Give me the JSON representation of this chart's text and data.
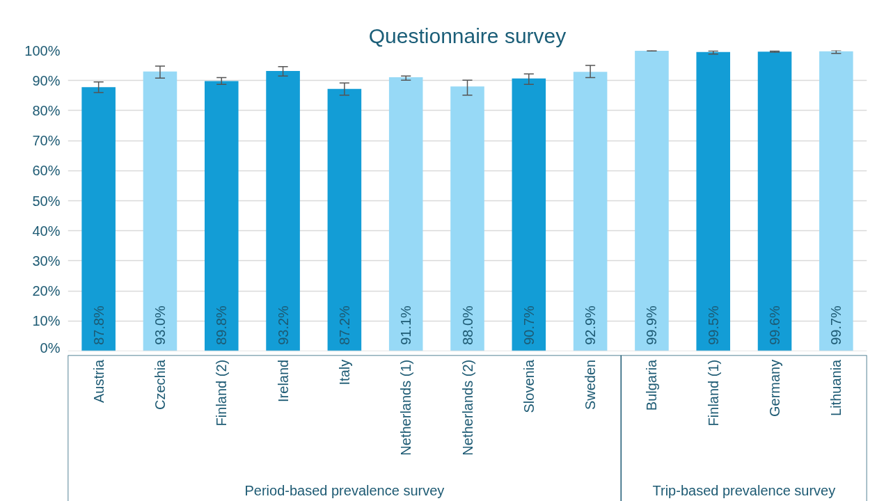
{
  "chart_data": {
    "type": "bar",
    "title": "Questionnaire survey",
    "categories": [
      "Austria",
      "Czechia",
      "Finland (2)",
      "Ireland",
      "Italy",
      "Netherlands (1)",
      "Netherlands (2)",
      "Slovenia",
      "Sweden",
      "Bulgaria",
      "Finland (1)",
      "Germany",
      "Lithuania"
    ],
    "values": [
      87.8,
      93.0,
      89.8,
      93.2,
      87.2,
      91.1,
      88.0,
      90.7,
      92.9,
      99.9,
      99.5,
      99.6,
      99.7
    ],
    "colors": [
      "#139dd6",
      "#97d9f6",
      "#139dd6",
      "#139dd6",
      "#139dd6",
      "#97d9f6",
      "#97d9f6",
      "#139dd6",
      "#97d9f6",
      "#97d9f6",
      "#139dd6",
      "#139dd6",
      "#97d9f6"
    ],
    "errors": [
      [
        86.0,
        89.5
      ],
      [
        90.8,
        94.8
      ],
      [
        88.7,
        91.0
      ],
      [
        91.5,
        94.6
      ],
      [
        85.1,
        89.2
      ],
      [
        90.1,
        91.5
      ],
      [
        85.1,
        90.1
      ],
      [
        88.7,
        92.2
      ],
      [
        91.0,
        95.0
      ],
      [
        99.8,
        100.0
      ],
      [
        98.8,
        99.8
      ],
      [
        99.4,
        99.8
      ],
      [
        99.0,
        100.0
      ]
    ],
    "value_labels": [
      "87.8%",
      "93.0%",
      "89.8%",
      "93.2%",
      "87.2%",
      "91.1%",
      "88.0%",
      "90.7%",
      "92.9%",
      "99.9%",
      "99.5%",
      "99.6%",
      "99.7%"
    ],
    "ylim": [
      0,
      100
    ],
    "yticks": [
      {
        "value": 0,
        "label": "0%"
      },
      {
        "value": 10,
        "label": "10%"
      },
      {
        "value": 20,
        "label": "20%"
      },
      {
        "value": 30,
        "label": "30%"
      },
      {
        "value": 40,
        "label": "40%"
      },
      {
        "value": 50,
        "label": "50%"
      },
      {
        "value": 60,
        "label": "60%"
      },
      {
        "value": 70,
        "label": "70%"
      },
      {
        "value": 80,
        "label": "80%"
      },
      {
        "value": 90,
        "label": "90%"
      },
      {
        "value": 100,
        "label": "100%"
      }
    ],
    "annotations": [
      "Period-based prevalence survey",
      "Trip-based prevalence survey"
    ],
    "grid": "y"
  }
}
